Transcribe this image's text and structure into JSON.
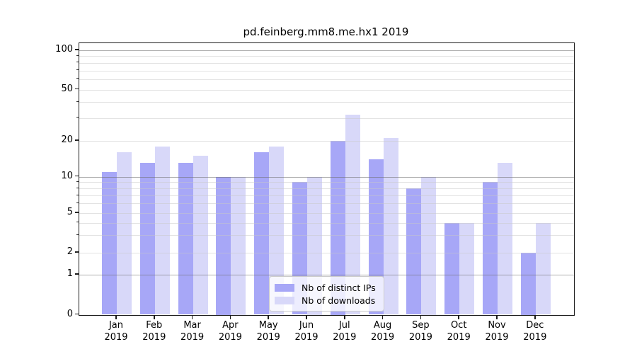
{
  "title": "pd.feinberg.mm8.me.hx1 2019",
  "colors": {
    "ips_bar": "#a7a7f7",
    "downloads_bar": "#d8d8f9",
    "grid_minor": "#e6e6e6",
    "grid_major": "#b3b3b3",
    "axis_frame": "#1a1a1a"
  },
  "legend": {
    "items": [
      {
        "label": "Nb of distinct IPs",
        "series": "ips"
      },
      {
        "label": "Nb of downloads",
        "series": "downloads"
      }
    ]
  },
  "x_axis": {
    "months": [
      "Jan",
      "Feb",
      "Mar",
      "Apr",
      "May",
      "Jun",
      "Jul",
      "Aug",
      "Sep",
      "Oct",
      "Nov",
      "Dec"
    ],
    "year": "2019"
  },
  "y_axis": {
    "tick_labels": [
      100,
      50,
      20,
      10,
      5,
      2,
      1,
      0
    ],
    "minor_grid_values": [
      2,
      3,
      4,
      5,
      6,
      7,
      8,
      9,
      20,
      30,
      40,
      50,
      60,
      70,
      80,
      90
    ],
    "major_grid_values": [
      1,
      10,
      100
    ]
  },
  "chart_data": {
    "type": "bar",
    "title": "pd.feinberg.mm8.me.hx1 2019",
    "categories": [
      "Jan 2019",
      "Feb 2019",
      "Mar 2019",
      "Apr 2019",
      "May 2019",
      "Jun 2019",
      "Jul 2019",
      "Aug 2019",
      "Sep 2019",
      "Oct 2019",
      "Nov 2019",
      "Dec 2019"
    ],
    "series": [
      {
        "name": "Nb of distinct IPs",
        "values": [
          11,
          13,
          13,
          10,
          16,
          9,
          20,
          14,
          8,
          4,
          9,
          2
        ]
      },
      {
        "name": "Nb of downloads",
        "values": [
          16,
          18,
          15,
          10,
          18,
          10,
          32,
          21,
          10,
          4,
          13,
          4
        ]
      }
    ],
    "ylabel": "",
    "xlabel": "",
    "yscale": "log-like (0,1,2,5,10,20,50,100)",
    "yticks": [
      0,
      1,
      2,
      5,
      10,
      20,
      50,
      100
    ],
    "ylim": [
      0,
      110
    ],
    "grid": true,
    "legend_position": "lower center"
  }
}
